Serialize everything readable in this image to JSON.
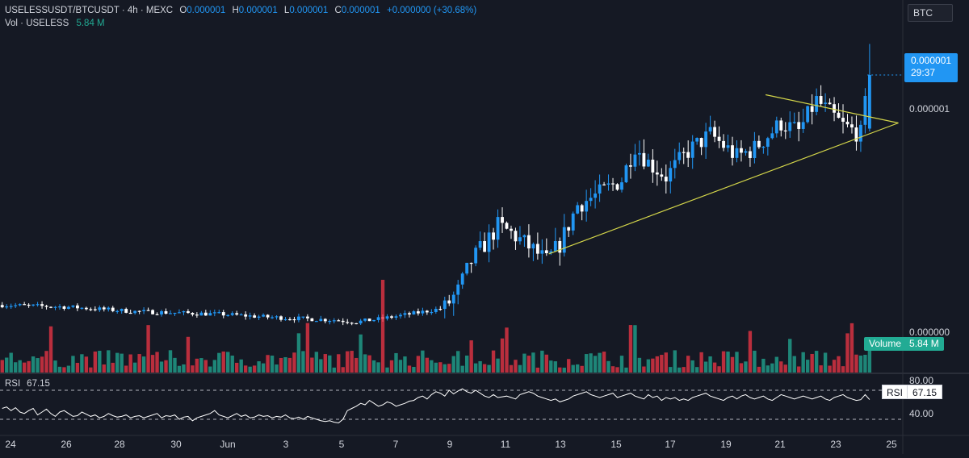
{
  "legend": {
    "symbol": "USELESSUSDT/BTCUSDT · 4h · MEXC",
    "open_label": "O",
    "open": "0.000001",
    "high_label": "H",
    "high": "0.000001",
    "low_label": "L",
    "low": "0.000001",
    "close_label": "C",
    "close": "0.000001",
    "change": "+0.000000 (+30.68%)",
    "vol_label": "Vol · USELESS",
    "vol_value": "5.84 M"
  },
  "currency_badge": "BTC",
  "last_price": {
    "value": "0.000001",
    "countdown": "29:37"
  },
  "volume_badge": {
    "label": "Volume",
    "value": "5.84 M"
  },
  "rsi": {
    "label": "RSI",
    "value": "67.15",
    "upper": "80.00",
    "lower": "40.00"
  },
  "colors": {
    "background": "#151924",
    "up": "#2196f3",
    "down": "#ffffff",
    "volume_up": "#22ab94",
    "volume_down": "#f23645",
    "trendline": "#d4d64a",
    "rsi_line": "#ffffff"
  },
  "chart_data": [
    {
      "type": "candlestick",
      "title": "USELESSUSDT/BTCUSDT · 4h · MEXC",
      "x_ticks": [
        "24",
        "26",
        "28",
        "30",
        "Jun",
        "3",
        "5",
        "7",
        "9",
        "11",
        "13",
        "15",
        "17",
        "19",
        "21",
        "23",
        "25"
      ],
      "y_ticks": [
        "0.000001",
        "0.000000"
      ],
      "segments": [
        {
          "t": 0,
          "y": 0.405
        },
        {
          "t": 15,
          "y": 0.398
        },
        {
          "t": 30,
          "y": 0.382
        },
        {
          "t": 50,
          "y": 0.372
        },
        {
          "t": 60,
          "y": 0.362
        },
        {
          "t": 75,
          "y": 0.352
        },
        {
          "t": 80,
          "y": 0.345
        },
        {
          "t": 85,
          "y": 0.355
        },
        {
          "t": 93,
          "y": 0.375
        },
        {
          "t": 100,
          "y": 0.395
        },
        {
          "t": 103,
          "y": 0.455
        },
        {
          "t": 106,
          "y": 0.56
        },
        {
          "t": 110,
          "y": 0.64
        },
        {
          "t": 112,
          "y": 0.685
        },
        {
          "t": 115,
          "y": 0.66
        },
        {
          "t": 120,
          "y": 0.6
        },
        {
          "t": 123,
          "y": 0.56
        },
        {
          "t": 126,
          "y": 0.62
        },
        {
          "t": 130,
          "y": 0.76
        },
        {
          "t": 135,
          "y": 0.8
        },
        {
          "t": 140,
          "y": 0.85
        },
        {
          "t": 143,
          "y": 0.97
        },
        {
          "t": 146,
          "y": 0.91
        },
        {
          "t": 150,
          "y": 0.86
        },
        {
          "t": 155,
          "y": 0.95
        },
        {
          "t": 160,
          "y": 1.01
        },
        {
          "t": 166,
          "y": 0.93
        },
        {
          "t": 170,
          "y": 0.96
        },
        {
          "t": 176,
          "y": 1.05
        },
        {
          "t": 180,
          "y": 1.02
        },
        {
          "t": 184,
          "y": 1.13
        },
        {
          "t": 186,
          "y": 1.1
        },
        {
          "t": 190,
          "y": 1.04
        },
        {
          "t": 194,
          "y": 1.01
        },
        {
          "t": 196,
          "y": 1.22
        }
      ],
      "price_min": 0.3,
      "price_max": 1.4,
      "trendlines": [
        {
          "name": "support",
          "from": {
            "t": 124,
            "y": 0.586
          },
          "to": {
            "t": 203,
            "y": 1.05
          }
        },
        {
          "name": "resistance",
          "from": {
            "t": 173,
            "y": 1.15
          },
          "to": {
            "t": 203,
            "y": 1.05
          }
        }
      ],
      "volume_max": 1.0,
      "ylabel": "",
      "xlabel": ""
    },
    {
      "type": "line",
      "title": "RSI",
      "values": [
        55,
        57,
        52,
        56,
        50,
        48,
        52,
        55,
        46,
        50,
        54,
        48,
        44,
        50,
        52,
        48,
        44,
        45,
        50,
        47,
        44,
        46,
        42,
        44,
        48,
        45,
        43,
        44,
        46,
        42,
        44,
        45,
        42,
        44,
        46,
        48,
        42,
        45,
        44,
        46,
        40,
        43,
        44,
        38,
        42,
        44,
        46,
        48,
        52,
        46,
        44,
        42,
        45,
        48,
        44,
        46,
        42,
        43,
        46,
        44,
        45,
        42,
        44,
        43,
        46,
        42,
        41,
        43,
        40,
        44,
        42,
        40,
        38,
        37,
        38,
        36,
        35,
        40,
        52,
        55,
        58,
        62,
        60,
        66,
        62,
        58,
        60,
        64,
        62,
        58,
        60,
        62,
        65,
        66,
        70,
        72,
        68,
        74,
        78,
        76,
        72,
        80,
        75,
        79,
        82,
        78,
        76,
        80,
        76,
        72,
        70,
        74,
        70,
        71,
        72,
        70,
        68,
        74,
        76,
        78,
        76,
        72,
        70,
        68,
        66,
        68,
        64,
        66,
        68,
        72,
        74,
        76,
        78,
        74,
        72,
        70,
        72,
        74,
        76,
        70,
        72,
        74,
        76,
        72,
        70,
        68,
        74,
        70,
        72,
        66,
        70,
        68,
        70,
        66,
        68,
        66,
        70,
        72,
        74,
        76,
        72,
        70,
        68,
        66,
        70,
        72,
        68,
        72,
        74,
        70,
        68,
        70,
        72,
        68,
        66,
        70,
        74,
        72,
        70,
        68,
        70,
        72,
        70,
        68,
        70,
        72,
        68,
        66,
        70,
        72,
        74,
        70,
        68,
        66,
        67,
        74,
        67.15
      ],
      "ylim": [
        20,
        100
      ],
      "bands": [
        80,
        40
      ],
      "xlabel": "",
      "ylabel": ""
    }
  ]
}
